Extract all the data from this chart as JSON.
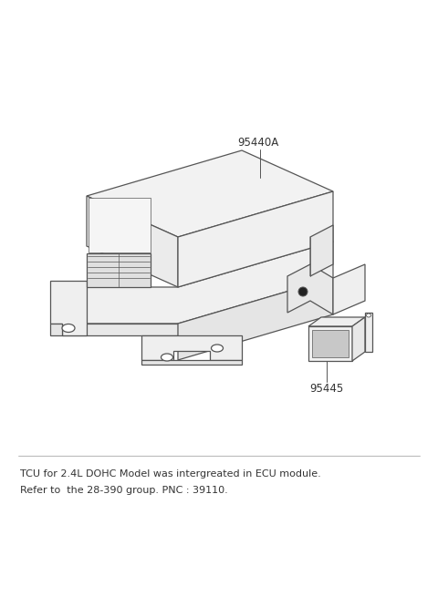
{
  "bg_color": "#ffffff",
  "line_color": "#555555",
  "line_width": 0.9,
  "label_95440A": "95440A",
  "label_95445": "95445",
  "note_line1": "TCU for 2.4L DOHC Model was intergreated in ECU module.",
  "note_line2": "Refer to  the 28-390 group. PNC : 39110.",
  "note_fontsize": 8.0,
  "label_fontsize": 8.5,
  "fig_width": 4.8,
  "fig_height": 6.55,
  "dpi": 100
}
